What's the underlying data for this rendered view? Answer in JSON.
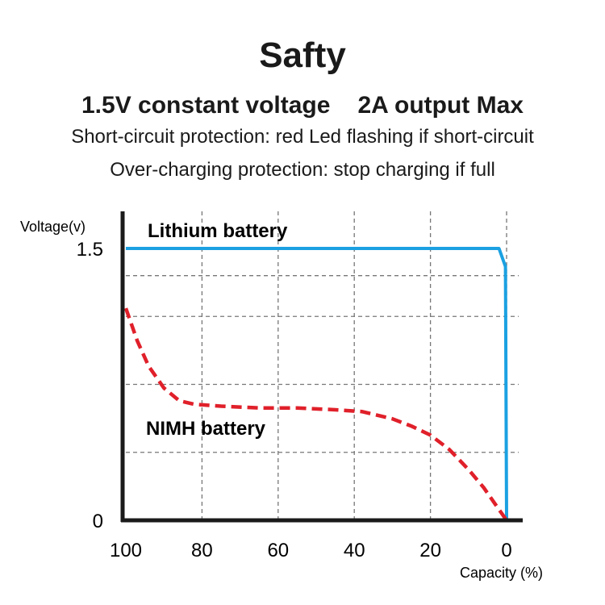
{
  "header": {
    "title": "Safty",
    "subtitle_left": "1.5V constant voltage",
    "subtitle_right": "2A output Max",
    "line1": "Short-circuit protection: red Led flashing if short-circuit",
    "line2": "Over-charging protection: stop charging if full"
  },
  "colors": {
    "lithium": "#1ba1e2",
    "nimh": "#e0202a",
    "axis": "#1a1a1a",
    "grid": "#777777"
  },
  "chart_data": {
    "type": "line",
    "ylabel": "Voltage(v)",
    "xlabel": "Capacity (%)",
    "x_ticks": [
      100,
      80,
      60,
      40,
      20,
      0
    ],
    "y_ticks": [
      {
        "value": 1.5,
        "label": "1.5"
      },
      {
        "value": 0,
        "label": "0"
      }
    ],
    "xlim": [
      100,
      0
    ],
    "ylim": [
      0,
      1.5
    ],
    "grid": true,
    "series": [
      {
        "name": "Lithium battery",
        "style": "solid",
        "x": [
          100,
          90,
          80,
          70,
          60,
          50,
          40,
          30,
          20,
          10,
          2,
          0.3,
          0
        ],
        "y": [
          1.5,
          1.5,
          1.5,
          1.5,
          1.5,
          1.5,
          1.5,
          1.5,
          1.5,
          1.5,
          1.5,
          1.4,
          0
        ]
      },
      {
        "name": "NIMH battery",
        "style": "dashed",
        "x": [
          100,
          97,
          94,
          90,
          86,
          82,
          75,
          65,
          55,
          45,
          38,
          30,
          25,
          20,
          15,
          10,
          6,
          3,
          1,
          0
        ],
        "y": [
          1.17,
          0.99,
          0.85,
          0.73,
          0.66,
          0.64,
          0.63,
          0.62,
          0.62,
          0.61,
          0.6,
          0.56,
          0.52,
          0.47,
          0.39,
          0.28,
          0.18,
          0.09,
          0.03,
          0
        ]
      }
    ]
  }
}
